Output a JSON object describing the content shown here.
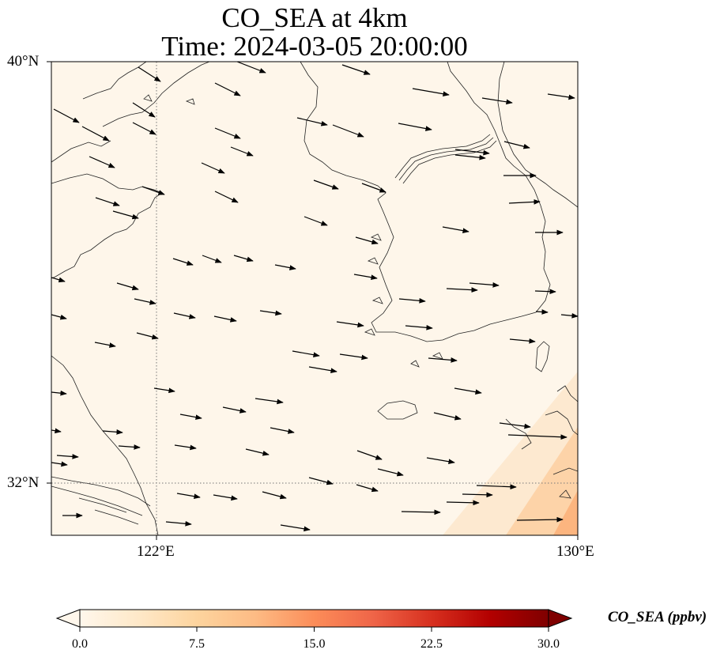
{
  "title": {
    "line1": "CO_SEA at 4km",
    "line2": "Time: 2024-03-05 20:00:00"
  },
  "map": {
    "extent": {
      "lon_min": 120.0,
      "lon_max": 130.0,
      "lat_min": 31.0,
      "lat_max": 40.0
    },
    "lat_ticks": [
      {
        "value": 40,
        "label": "40°N"
      },
      {
        "value": 32,
        "label": "32°N"
      }
    ],
    "lon_ticks": [
      {
        "value": 122,
        "label": "122°E"
      },
      {
        "value": 130,
        "label": "130°E"
      }
    ],
    "gridlines": "dotted",
    "background_color": "#fef6ea",
    "field_colors": [
      "#fef6ea",
      "#fde9d0",
      "#fdd3a8",
      "#fcb57f"
    ]
  },
  "colorbar": {
    "label": "CO_SEA (ppbv)",
    "min": 0.0,
    "max": 30.0,
    "extend": "both",
    "ticks": [
      "0.0",
      "7.5",
      "15.0",
      "22.5",
      "30.0"
    ],
    "colors": [
      "#fff7ec",
      "#fee8c8",
      "#fdd49e",
      "#fdbb84",
      "#fc8d59",
      "#ef6548",
      "#d7301f",
      "#b30000",
      "#7f0000"
    ]
  }
}
